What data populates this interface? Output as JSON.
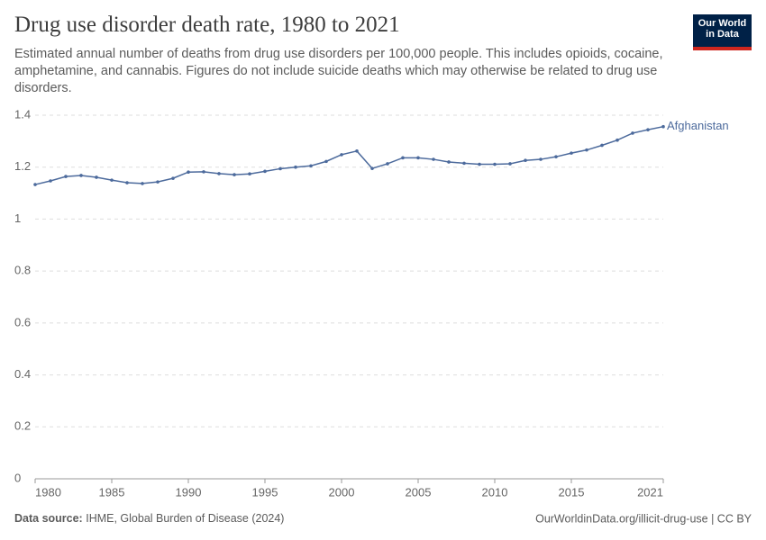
{
  "chart_data": {
    "type": "line",
    "title": "Drug use disorder death rate, 1980 to 2021",
    "subtitle": "Estimated annual number of deaths from drug use disorders per 100,000 people. This includes opioids, cocaine, amphetamine, and cannabis. Figures do not include suicide deaths which may otherwise be related to drug use disorders.",
    "x": [
      1980,
      1981,
      1982,
      1983,
      1984,
      1985,
      1986,
      1987,
      1988,
      1989,
      1990,
      1991,
      1992,
      1993,
      1994,
      1995,
      1996,
      1997,
      1998,
      1999,
      2000,
      2001,
      2002,
      2003,
      2004,
      2005,
      2006,
      2007,
      2008,
      2009,
      2010,
      2011,
      2012,
      2013,
      2014,
      2015,
      2016,
      2017,
      2018,
      2019,
      2020,
      2021
    ],
    "series": [
      {
        "name": "Afghanistan",
        "color": "#4c6a9c",
        "values": [
          1.133,
          1.147,
          1.164,
          1.168,
          1.161,
          1.15,
          1.14,
          1.137,
          1.143,
          1.157,
          1.181,
          1.182,
          1.175,
          1.171,
          1.174,
          1.184,
          1.194,
          1.2,
          1.205,
          1.222,
          1.248,
          1.262,
          1.195,
          1.213,
          1.236,
          1.236,
          1.23,
          1.22,
          1.215,
          1.211,
          1.211,
          1.213,
          1.226,
          1.23,
          1.24,
          1.254,
          1.266,
          1.284,
          1.304,
          1.331,
          1.344,
          1.356
        ]
      }
    ],
    "xlim": [
      1980,
      2021
    ],
    "ylim": [
      0,
      1.4
    ],
    "xticks": [
      1980,
      1985,
      1990,
      1995,
      2000,
      2005,
      2010,
      2015,
      2021
    ],
    "yticks": [
      0,
      0.2,
      0.4,
      0.6,
      0.8,
      1,
      1.2,
      1.4
    ],
    "grid": true
  },
  "logo": [
    "Our World",
    "in Data"
  ],
  "footer": {
    "source_label": "Data source:",
    "source": "IHME, Global Burden of Disease (2024)",
    "credit": "OurWorldinData.org/illicit-drug-use | CC BY"
  }
}
